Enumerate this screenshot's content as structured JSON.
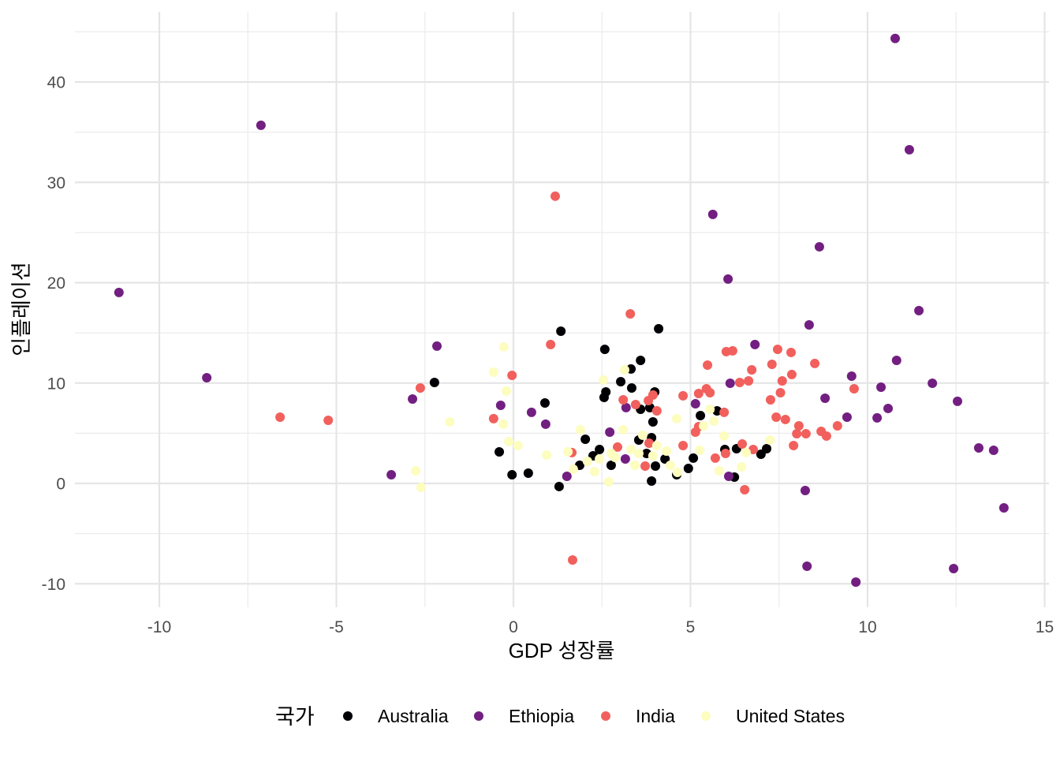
{
  "chart_data": {
    "type": "scatter",
    "title": "",
    "xlabel": "GDP 성장률",
    "ylabel": "인플레이션",
    "xlim": [
      -12.4,
      15.1
    ],
    "ylim": [
      -12.4,
      46.9
    ],
    "xticks": [
      -10,
      -5,
      0,
      5,
      10,
      15
    ],
    "xtick_labels": [
      "-10",
      "-5",
      "0",
      "5",
      "10",
      "15"
    ],
    "yticks": [
      -10,
      0,
      10,
      20,
      30,
      40
    ],
    "ytick_labels": [
      "-10",
      "0",
      "10",
      "20",
      "30",
      "40"
    ],
    "grid": true,
    "legend": {
      "title": "국가",
      "position": "bottom"
    },
    "series": [
      {
        "name": "Australia",
        "color": "#000004",
        "points": [
          [
            -2.23,
            10.06
          ],
          [
            -0.4,
            3.14
          ],
          [
            -0.04,
            0.86
          ],
          [
            0.42,
            1.02
          ],
          [
            0.89,
            8.02
          ],
          [
            1.29,
            -0.31
          ],
          [
            1.34,
            15.17
          ],
          [
            2.03,
            4.4
          ],
          [
            2.58,
            13.36
          ],
          [
            2.61,
            9.12
          ],
          [
            2.56,
            8.57
          ],
          [
            3.03,
            10.14
          ],
          [
            3.32,
            11.4
          ],
          [
            3.34,
            9.51
          ],
          [
            3.59,
            12.26
          ],
          [
            3.59,
            7.39
          ],
          [
            4.1,
            15.41
          ],
          [
            3.85,
            7.55
          ],
          [
            3.94,
            6.13
          ],
          [
            3.99,
            9.12
          ],
          [
            3.9,
            0.24
          ],
          [
            4.01,
            1.73
          ],
          [
            3.54,
            4.32
          ],
          [
            3.9,
            4.56
          ],
          [
            4.61,
            0.86
          ],
          [
            4.94,
            1.49
          ],
          [
            5.08,
            2.52
          ],
          [
            5.28,
            6.76
          ],
          [
            5.75,
            7.23
          ],
          [
            5.97,
            3.38
          ],
          [
            6.24,
            0.63
          ],
          [
            6.3,
            3.46
          ],
          [
            6.99,
            2.91
          ],
          [
            7.15,
            3.46
          ],
          [
            2.25,
            2.75
          ],
          [
            2.43,
            3.38
          ],
          [
            1.87,
            1.81
          ],
          [
            2.76,
            1.81
          ],
          [
            4.28,
            2.44
          ],
          [
            3.76,
            2.99
          ]
        ]
      },
      {
        "name": "Ethiopia",
        "color": "#721F81",
        "points": [
          [
            -11.14,
            19.03
          ],
          [
            -7.13,
            35.69
          ],
          [
            -8.66,
            10.53
          ],
          [
            -3.45,
            0.86
          ],
          [
            -2.85,
            8.41
          ],
          [
            -2.16,
            13.68
          ],
          [
            -0.36,
            7.78
          ],
          [
            0.51,
            7.08
          ],
          [
            0.91,
            5.9
          ],
          [
            1.51,
            0.71
          ],
          [
            2.72,
            5.11
          ],
          [
            3.18,
            7.55
          ],
          [
            3.16,
            2.44
          ],
          [
            5.14,
            7.94
          ],
          [
            5.63,
            26.81
          ],
          [
            6.06,
            20.36
          ],
          [
            6.12,
            9.98
          ],
          [
            6.08,
            0.71
          ],
          [
            6.82,
            13.84
          ],
          [
            8.24,
            -0.71
          ],
          [
            8.29,
            -8.25
          ],
          [
            8.35,
            15.8
          ],
          [
            8.64,
            23.58
          ],
          [
            8.8,
            8.49
          ],
          [
            9.42,
            6.6
          ],
          [
            9.55,
            10.69
          ],
          [
            9.67,
            -9.83
          ],
          [
            10.27,
            6.53
          ],
          [
            10.38,
            9.59
          ],
          [
            10.58,
            7.47
          ],
          [
            10.78,
            44.34
          ],
          [
            10.82,
            12.26
          ],
          [
            11.18,
            33.25
          ],
          [
            11.45,
            17.22
          ],
          [
            11.83,
            9.98
          ],
          [
            12.43,
            -8.49
          ],
          [
            12.54,
            8.18
          ],
          [
            13.14,
            3.54
          ],
          [
            13.56,
            3.3
          ],
          [
            13.85,
            -2.44
          ]
        ]
      },
      {
        "name": "India",
        "color": "#F1605D",
        "points": [
          [
            -6.59,
            6.6
          ],
          [
            -5.23,
            6.29
          ],
          [
            -2.63,
            9.51
          ],
          [
            -0.56,
            6.45
          ],
          [
            -0.04,
            10.77
          ],
          [
            1.05,
            13.84
          ],
          [
            1.18,
            28.62
          ],
          [
            1.67,
            -7.63
          ],
          [
            1.65,
            3.07
          ],
          [
            2.94,
            3.62
          ],
          [
            3.1,
            8.33
          ],
          [
            3.3,
            16.9
          ],
          [
            3.45,
            7.86
          ],
          [
            3.81,
            8.25
          ],
          [
            3.94,
            8.81
          ],
          [
            4.05,
            7.23
          ],
          [
            3.72,
            1.73
          ],
          [
            3.83,
            4.01
          ],
          [
            4.79,
            8.73
          ],
          [
            4.79,
            3.77
          ],
          [
            5.14,
            5.11
          ],
          [
            5.23,
            5.66
          ],
          [
            5.23,
            8.96
          ],
          [
            5.45,
            9.43
          ],
          [
            5.55,
            9.04
          ],
          [
            5.48,
            11.79
          ],
          [
            5.7,
            2.52
          ],
          [
            5.95,
            7.08
          ],
          [
            5.99,
            2.99
          ],
          [
            6.01,
            13.13
          ],
          [
            6.19,
            13.21
          ],
          [
            6.39,
            10.06
          ],
          [
            6.46,
            3.93
          ],
          [
            6.53,
            -0.63
          ],
          [
            6.64,
            10.22
          ],
          [
            6.73,
            11.32
          ],
          [
            6.77,
            3.38
          ],
          [
            7.26,
            8.33
          ],
          [
            7.3,
            11.87
          ],
          [
            7.42,
            6.6
          ],
          [
            7.46,
            13.36
          ],
          [
            7.54,
            9.04
          ],
          [
            7.59,
            10.22
          ],
          [
            7.68,
            6.37
          ],
          [
            7.84,
            13.05
          ],
          [
            7.86,
            10.85
          ],
          [
            7.91,
            3.77
          ],
          [
            8.0,
            4.95
          ],
          [
            8.06,
            5.74
          ],
          [
            8.26,
            4.95
          ],
          [
            8.51,
            11.95
          ],
          [
            8.69,
            5.19
          ],
          [
            8.84,
            4.72
          ],
          [
            9.15,
            5.74
          ],
          [
            9.62,
            9.43
          ]
        ]
      },
      {
        "name": "United States",
        "color": "#FCFDBF",
        "points": [
          [
            -2.76,
            1.26
          ],
          [
            -2.61,
            -0.39
          ],
          [
            -1.8,
            6.13
          ],
          [
            -0.56,
            11.08
          ],
          [
            -0.27,
            13.6
          ],
          [
            -0.2,
            9.2
          ],
          [
            -0.29,
            5.9
          ],
          [
            -0.13,
            4.17
          ],
          [
            0.13,
            3.77
          ],
          [
            0.94,
            2.83
          ],
          [
            1.54,
            3.14
          ],
          [
            1.69,
            1.42
          ],
          [
            1.89,
            5.35
          ],
          [
            2.54,
            10.3
          ],
          [
            3.14,
            11.32
          ],
          [
            3.1,
            5.35
          ],
          [
            2.69,
            0.16
          ],
          [
            2.29,
            1.18
          ],
          [
            3.43,
            1.81
          ],
          [
            3.65,
            4.8
          ],
          [
            4.61,
            6.45
          ],
          [
            4.63,
            1.1
          ],
          [
            5.26,
            3.3
          ],
          [
            5.37,
            5.74
          ],
          [
            5.55,
            7.39
          ],
          [
            5.66,
            6.21
          ],
          [
            5.95,
            4.72
          ],
          [
            5.81,
            1.26
          ],
          [
            6.44,
            1.65
          ],
          [
            6.57,
            3.07
          ],
          [
            7.24,
            4.32
          ],
          [
            2.09,
            2.2
          ],
          [
            2.43,
            2.44
          ],
          [
            2.76,
            2.99
          ],
          [
            2.87,
            2.59
          ],
          [
            3.32,
            3.38
          ],
          [
            3.54,
            2.99
          ],
          [
            3.94,
            2.75
          ],
          [
            4.05,
            3.77
          ],
          [
            4.43,
            1.81
          ],
          [
            4.32,
            3.22
          ]
        ]
      }
    ]
  }
}
